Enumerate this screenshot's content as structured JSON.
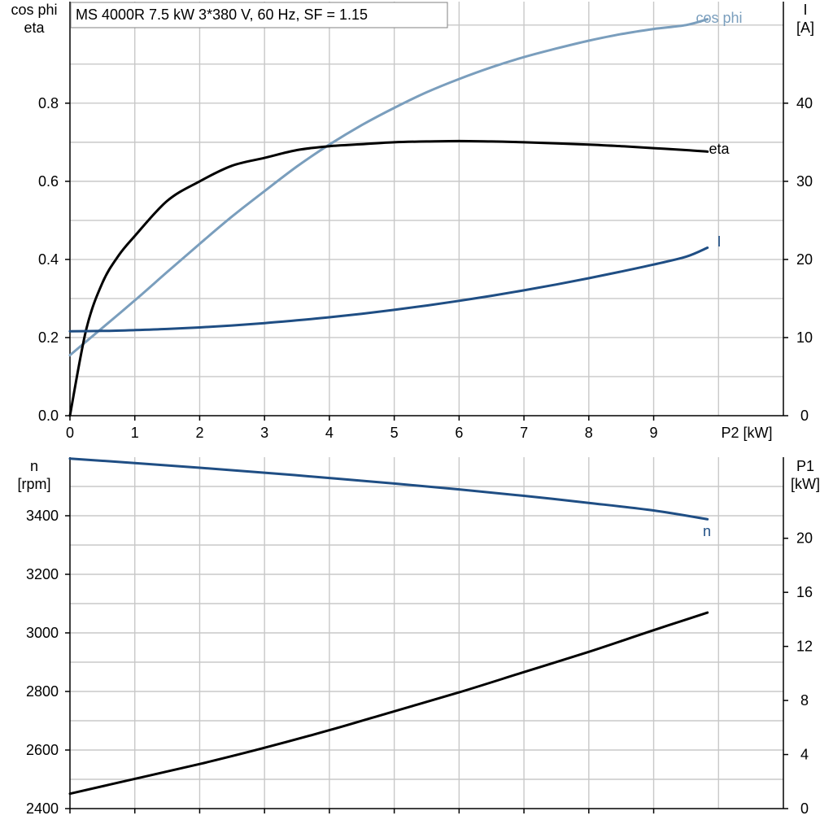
{
  "title": "MS 4000R   7.5 kW   3*380 V, 60 Hz, SF = 1.15",
  "colors": {
    "black": "#000000",
    "blue": "#1f4e84",
    "light_blue": "#7a9ebd",
    "grid": "#c8c8c8"
  },
  "chart_data": [
    {
      "type": "line",
      "panel": "top",
      "x_axis": {
        "label": "P2 [kW]",
        "range": [
          0,
          11
        ],
        "ticks": [
          0,
          1,
          2,
          3,
          4,
          5,
          6,
          7,
          8,
          9
        ],
        "tick_labels": [
          "0",
          "1",
          "2",
          "3",
          "4",
          "5",
          "6",
          "7",
          "8",
          "9"
        ]
      },
      "y_left": {
        "label_lines": [
          "cos phi",
          "eta"
        ],
        "range": [
          0,
          1.06
        ],
        "ticks": [
          0,
          0.2,
          0.4,
          0.6,
          0.8
        ],
        "tick_labels": [
          "0.0",
          "0.2",
          "0.4",
          "0.6",
          "0.8"
        ]
      },
      "y_right": {
        "label_lines": [
          "I",
          "[A]"
        ],
        "range": [
          0,
          53
        ],
        "ticks": [
          0,
          10,
          20,
          30,
          40
        ],
        "tick_labels": [
          "0",
          "10",
          "20",
          "30",
          "40"
        ]
      },
      "grid": true,
      "series": [
        {
          "name": "cos phi",
          "axis": "left",
          "color": "#7a9ebd",
          "x": [
            0,
            0.5,
            1,
            1.5,
            2,
            2.5,
            3,
            3.5,
            4,
            4.5,
            5,
            5.5,
            6,
            6.5,
            7,
            7.5,
            8,
            8.5,
            9,
            9.5,
            9.83
          ],
          "y": [
            0.155,
            0.225,
            0.295,
            0.368,
            0.44,
            0.51,
            0.575,
            0.638,
            0.694,
            0.744,
            0.788,
            0.828,
            0.862,
            0.892,
            0.918,
            0.94,
            0.96,
            0.977,
            0.99,
            1.0,
            1.015
          ]
        },
        {
          "name": "eta",
          "axis": "left",
          "color": "#000000",
          "x": [
            0,
            0.25,
            0.5,
            0.75,
            1,
            1.5,
            2,
            2.5,
            3,
            3.5,
            4,
            4.5,
            5,
            5.5,
            6,
            6.5,
            7,
            7.5,
            8,
            8.5,
            9,
            9.5,
            9.83
          ],
          "y": [
            0.0,
            0.22,
            0.34,
            0.41,
            0.46,
            0.55,
            0.6,
            0.64,
            0.66,
            0.68,
            0.69,
            0.695,
            0.7,
            0.702,
            0.703,
            0.702,
            0.7,
            0.697,
            0.694,
            0.69,
            0.685,
            0.68,
            0.676
          ]
        },
        {
          "name": "I",
          "axis": "right",
          "color": "#1f4e84",
          "x": [
            0,
            0.5,
            1,
            1.5,
            2,
            2.5,
            3,
            3.5,
            4,
            4.5,
            5,
            5.5,
            6,
            6.5,
            7,
            7.5,
            8,
            8.5,
            9,
            9.5,
            9.83
          ],
          "y": [
            10.8,
            10.85,
            10.95,
            11.1,
            11.3,
            11.55,
            11.85,
            12.2,
            12.6,
            13.05,
            13.55,
            14.1,
            14.7,
            15.35,
            16.05,
            16.8,
            17.6,
            18.45,
            19.35,
            20.35,
            21.5
          ]
        }
      ]
    },
    {
      "type": "line",
      "panel": "bottom",
      "x_axis": {
        "range": [
          0,
          11
        ],
        "ticks": [
          0,
          1,
          2,
          3,
          4,
          5,
          6,
          7,
          8,
          9
        ]
      },
      "y_left": {
        "label_lines": [
          "n",
          "[rpm]"
        ],
        "range": [
          2400,
          3600
        ],
        "ticks": [
          2400,
          2600,
          2800,
          3000,
          3200,
          3400
        ],
        "tick_labels": [
          "2400",
          "2600",
          "2800",
          "3000",
          "3200",
          "3400"
        ]
      },
      "y_right": {
        "label_lines": [
          "P1",
          "[kW]"
        ],
        "range": [
          0,
          26
        ],
        "ticks": [
          0,
          4,
          8,
          12,
          16,
          20
        ],
        "tick_labels": [
          "0",
          "4",
          "8",
          "12",
          "16",
          "20"
        ]
      },
      "grid": true,
      "series": [
        {
          "name": "n",
          "axis": "left",
          "color": "#1f4e84",
          "x": [
            0,
            1,
            2,
            3,
            4,
            5,
            6,
            7,
            8,
            9,
            9.83
          ],
          "y": [
            3595,
            3580,
            3564,
            3547,
            3529,
            3510,
            3490,
            3468,
            3444,
            3418,
            3388
          ]
        },
        {
          "name": "",
          "axis": "right",
          "color": "#000000",
          "x": [
            0,
            1,
            2,
            3,
            4,
            5,
            6,
            7,
            8,
            9,
            9.83
          ],
          "y": [
            1.1,
            2.2,
            3.3,
            4.5,
            5.8,
            7.2,
            8.6,
            10.1,
            11.6,
            13.2,
            14.5
          ]
        }
      ]
    }
  ]
}
